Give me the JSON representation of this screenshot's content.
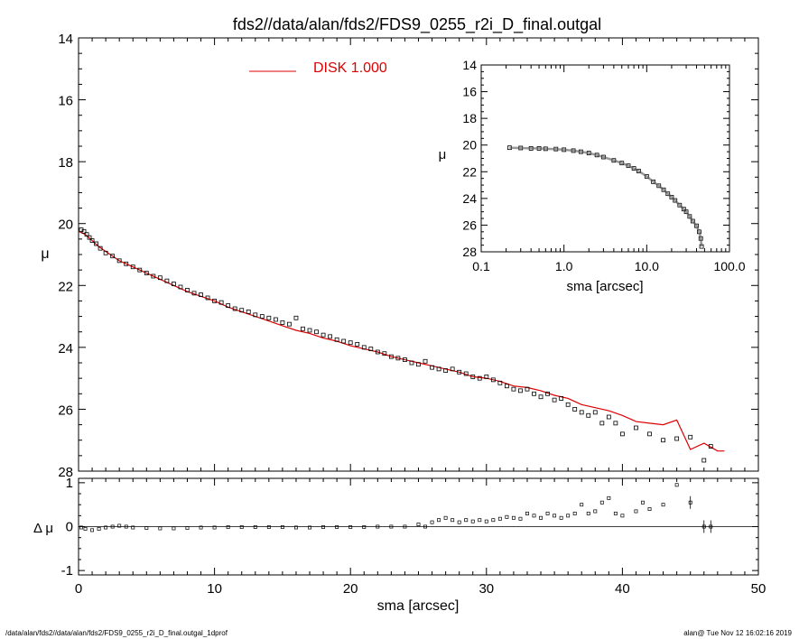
{
  "title": "fds2//data/alan/fds2/FDS9_0255_r2i_D_final.outgal",
  "footer_left": "/data/alan/fds2//data/alan/fds2/FDS9_0255_r2i_D_final.outgal_1dprof",
  "footer_right": "alan@  Tue Nov 12 16:02:16 2019",
  "colors": {
    "model": "#dd0000",
    "data": "#000000",
    "background": "#ffffff"
  },
  "chart_data": [
    {
      "panel": "main",
      "type": "scatter",
      "ylabel": "μ",
      "xlim": [
        0,
        50
      ],
      "ylim": [
        28,
        14
      ],
      "y_inverted": true,
      "yticks": [
        "14",
        "16",
        "18",
        "20",
        "22",
        "24",
        "26",
        "28"
      ],
      "legend": {
        "label": "DISK  1.000",
        "placement": "top-left"
      },
      "series": [
        {
          "name": "DISK  1.000",
          "style": "line",
          "x": [
            0,
            0.5,
            1,
            1.5,
            2,
            3,
            4,
            5,
            6,
            7,
            8,
            9,
            10,
            11,
            12,
            13,
            14,
            15,
            16,
            17,
            18,
            19,
            20,
            21,
            22,
            23,
            24,
            25,
            26,
            27,
            28,
            29,
            30,
            31,
            32,
            33,
            34,
            35,
            36,
            37,
            38,
            39,
            40,
            41,
            42,
            43,
            44,
            45,
            46,
            47,
            47.5
          ],
          "y": [
            20.25,
            20.35,
            20.55,
            20.75,
            20.9,
            21.2,
            21.4,
            21.6,
            21.8,
            22.0,
            22.2,
            22.35,
            22.5,
            22.7,
            22.85,
            23.0,
            23.15,
            23.3,
            23.45,
            23.55,
            23.7,
            23.8,
            23.95,
            24.05,
            24.15,
            24.3,
            24.4,
            24.5,
            24.6,
            24.7,
            24.8,
            24.95,
            25.0,
            25.1,
            25.25,
            25.3,
            25.4,
            25.55,
            25.65,
            25.85,
            25.95,
            26.05,
            26.2,
            26.4,
            26.45,
            26.5,
            26.35,
            27.3,
            27.1,
            27.35,
            27.35
          ]
        },
        {
          "name": "",
          "style": "boxes",
          "x": [
            0.2,
            0.4,
            0.6,
            0.8,
            1,
            1.3,
            1.6,
            2,
            2.5,
            3,
            3.5,
            4,
            4.5,
            5,
            5.5,
            6,
            6.5,
            7,
            7.5,
            8,
            8.5,
            9,
            9.5,
            10,
            10.5,
            11,
            11.5,
            12,
            12.5,
            13,
            13.5,
            14,
            14.5,
            15,
            15.5,
            16,
            16.5,
            17,
            17.5,
            18,
            18.5,
            19,
            19.5,
            20,
            20.5,
            21,
            21.5,
            22,
            22.5,
            23,
            23.5,
            24,
            24.5,
            25,
            25.5,
            26,
            26.5,
            27,
            27.5,
            28,
            28.5,
            29,
            29.5,
            30,
            30.5,
            31,
            31.5,
            32,
            32.5,
            33,
            33.5,
            34,
            34.5,
            35,
            35.5,
            36,
            36.5,
            37,
            37.5,
            38,
            38.5,
            39,
            39.5,
            40,
            41,
            42,
            43,
            44,
            45,
            46,
            46.5
          ],
          "y": [
            20.2,
            20.25,
            20.35,
            20.45,
            20.55,
            20.65,
            20.8,
            20.95,
            21.05,
            21.2,
            21.3,
            21.4,
            21.5,
            21.6,
            21.7,
            21.75,
            21.85,
            21.95,
            22.05,
            22.15,
            22.25,
            22.3,
            22.4,
            22.5,
            22.55,
            22.65,
            22.75,
            22.8,
            22.85,
            22.95,
            23.0,
            23.05,
            23.1,
            23.2,
            23.25,
            23.05,
            23.4,
            23.45,
            23.5,
            23.6,
            23.65,
            23.75,
            23.8,
            23.85,
            23.9,
            24.0,
            24.05,
            24.15,
            24.2,
            24.3,
            24.35,
            24.4,
            24.5,
            24.55,
            24.45,
            24.65,
            24.7,
            24.75,
            24.7,
            24.8,
            24.85,
            24.95,
            25.0,
            24.95,
            25.05,
            25.15,
            25.25,
            25.35,
            25.4,
            25.35,
            25.5,
            25.6,
            25.5,
            25.7,
            25.65,
            25.85,
            26.0,
            26.1,
            26.2,
            26.1,
            26.45,
            26.25,
            26.45,
            26.8,
            26.6,
            26.8,
            27.0,
            26.95,
            26.9,
            27.65,
            27.2
          ],
          "marker": "square"
        }
      ]
    },
    {
      "panel": "inset",
      "type": "scatter",
      "xlabel": "sma [arcsec]",
      "ylabel": "μ",
      "xscale": "log",
      "xlim": [
        0.1,
        100
      ],
      "xticks": [
        "0.1",
        "1.0",
        "10.0",
        "100.0"
      ],
      "ylim": [
        28,
        14
      ],
      "y_inverted": true,
      "yticks": [
        "14",
        "16",
        "18",
        "20",
        "22",
        "24",
        "26",
        "28"
      ],
      "series": [
        {
          "name": "",
          "style": "boxes",
          "x": [
            0.22,
            0.3,
            0.4,
            0.5,
            0.6,
            0.8,
            1.0,
            1.3,
            1.6,
            2.0,
            2.5,
            3.0,
            4.0,
            5.0,
            6.0,
            7.0,
            8.0,
            10.0,
            12.0,
            14.0,
            16.0,
            18.0,
            20.0,
            22.0,
            25.0,
            28.0,
            30.0,
            33.0,
            36.0,
            40.0,
            43.0,
            45.0,
            46.0
          ],
          "y": [
            20.2,
            20.22,
            20.25,
            20.25,
            20.28,
            20.3,
            20.35,
            20.42,
            20.5,
            20.6,
            20.75,
            20.9,
            21.15,
            21.35,
            21.55,
            21.75,
            21.95,
            22.35,
            22.75,
            23.05,
            23.35,
            23.65,
            23.9,
            24.15,
            24.5,
            24.8,
            25.0,
            25.35,
            25.7,
            26.05,
            26.5,
            27.0,
            27.6
          ],
          "marker": "square"
        }
      ]
    },
    {
      "panel": "residual",
      "type": "scatter",
      "xlabel": "sma [arcsec]",
      "ylabel": "Δ μ",
      "xlim": [
        0,
        50
      ],
      "xticks": [
        "0",
        "10",
        "20",
        "30",
        "40",
        "50"
      ],
      "ylim": [
        -1.1,
        1.1
      ],
      "yticks": [
        "1",
        "0",
        "-1"
      ],
      "series": [
        {
          "name": "",
          "style": "boxes",
          "x": [
            0.2,
            0.5,
            1,
            1.5,
            2,
            2.5,
            3,
            3.5,
            4,
            5,
            6,
            7,
            8,
            9,
            10,
            11,
            12,
            13,
            14,
            15,
            16,
            17,
            18,
            19,
            20,
            21,
            22,
            23,
            24,
            25,
            25.5,
            26,
            26.5,
            27,
            27.5,
            28,
            28.5,
            29,
            29.5,
            30,
            30.5,
            31,
            31.5,
            32,
            32.5,
            33,
            33.5,
            34,
            34.5,
            35,
            35.5,
            36,
            36.5,
            37,
            37.5,
            38,
            38.5,
            39,
            39.5,
            40,
            41,
            41.5,
            42,
            43,
            44,
            45,
            46,
            46.5
          ],
          "y": [
            -0.02,
            -0.05,
            -0.08,
            -0.05,
            -0.02,
            0.0,
            0.02,
            0.0,
            -0.02,
            -0.03,
            -0.04,
            -0.04,
            -0.03,
            -0.02,
            -0.02,
            -0.01,
            -0.01,
            -0.01,
            -0.01,
            -0.01,
            -0.02,
            -0.02,
            -0.01,
            -0.01,
            -0.01,
            -0.01,
            0.0,
            0.0,
            0.0,
            0.05,
            0.0,
            0.1,
            0.15,
            0.2,
            0.15,
            0.1,
            0.15,
            0.12,
            0.15,
            0.12,
            0.15,
            0.18,
            0.22,
            0.2,
            0.18,
            0.3,
            0.25,
            0.2,
            0.3,
            0.25,
            0.2,
            0.25,
            0.3,
            0.5,
            0.3,
            0.35,
            0.55,
            0.65,
            0.3,
            0.25,
            0.35,
            0.55,
            0.4,
            0.5,
            0.95,
            0.55,
            0.0,
            0.0
          ],
          "marker": "square"
        }
      ]
    }
  ]
}
